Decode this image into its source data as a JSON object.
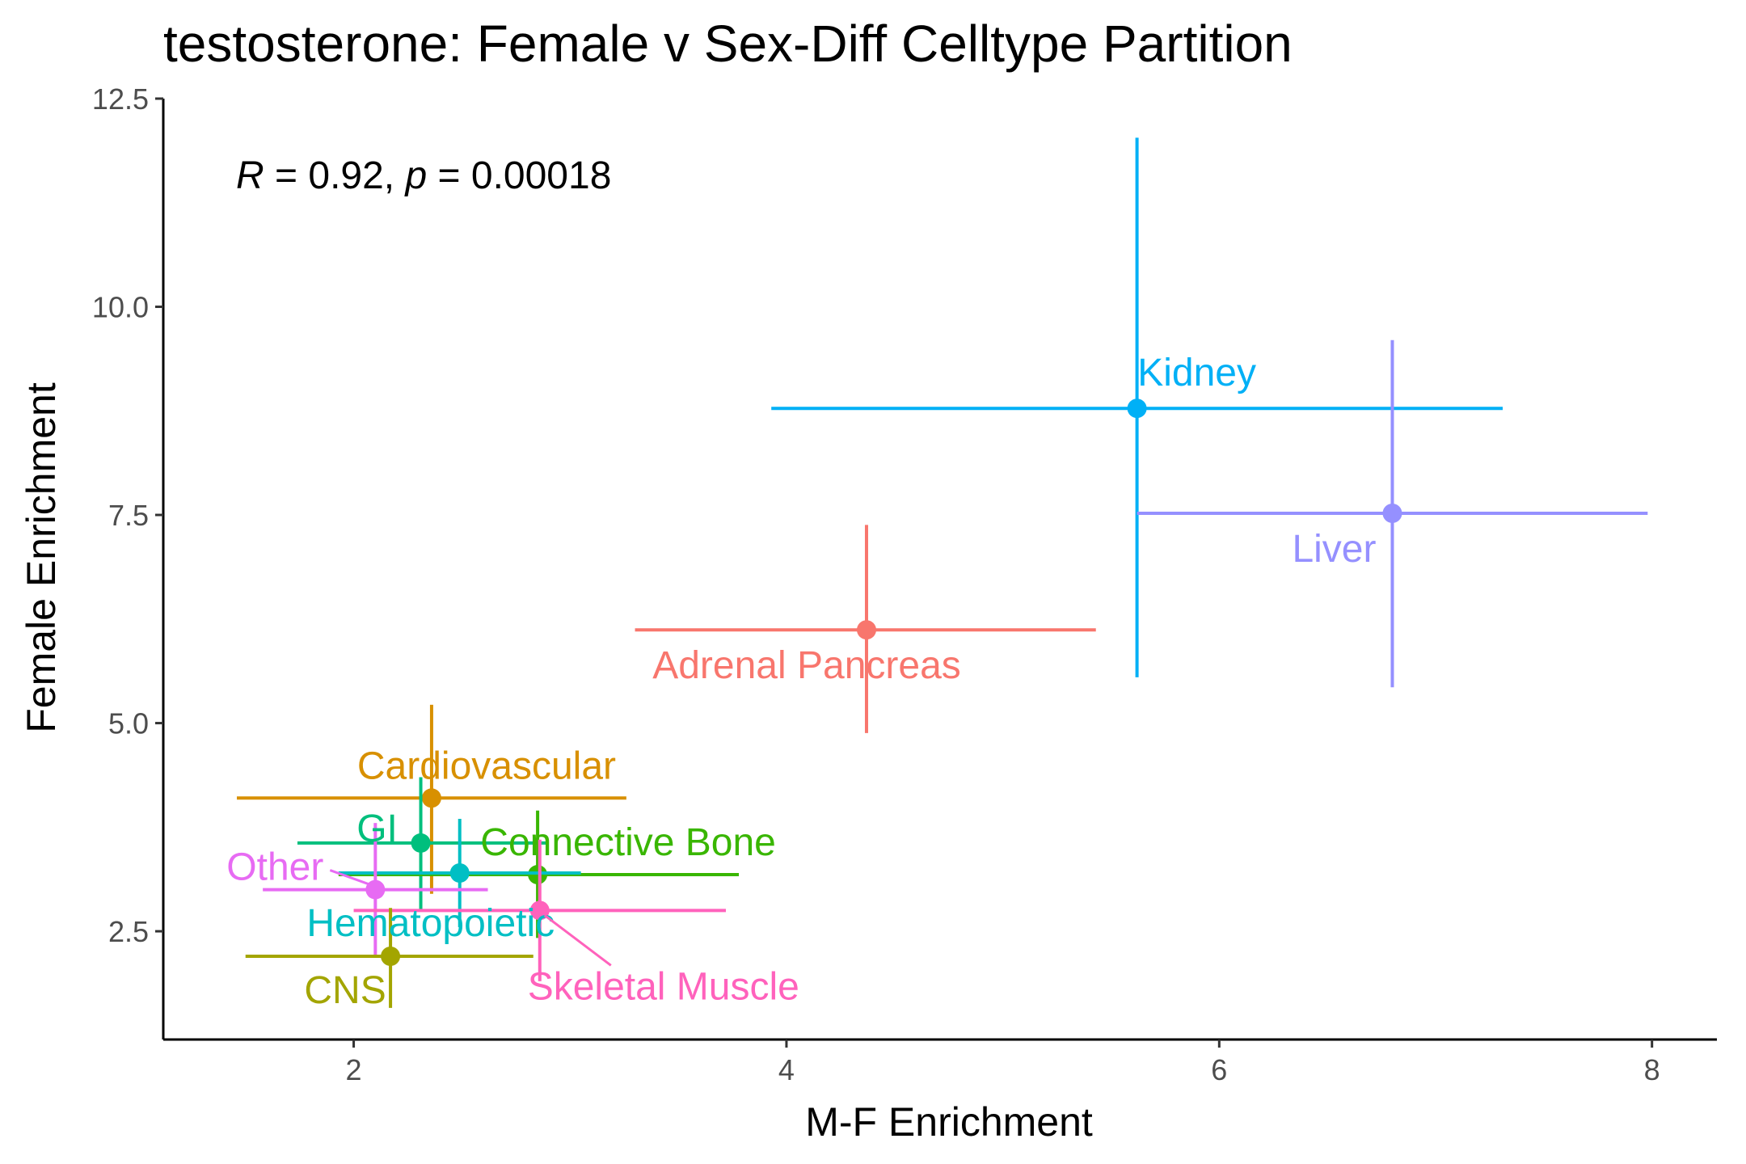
{
  "chart_data": {
    "type": "scatter",
    "title": "testosterone: Female v Sex-Diff Celltype Partition",
    "xlabel": "M-F Enrichment",
    "ylabel": "Female Enrichment",
    "xlim": [
      1.12,
      8.3
    ],
    "ylim": [
      1.2,
      12.5
    ],
    "xticks": [
      2,
      4,
      6,
      8
    ],
    "xtick_labels": [
      "2",
      "4",
      "6",
      "8"
    ],
    "yticks": [
      2.5,
      5.0,
      7.5,
      10.0,
      12.5
    ],
    "ytick_labels": [
      "2.5",
      "5.0",
      "7.5",
      "10.0",
      "12.5"
    ],
    "grid": false,
    "legend": "none",
    "annotation": {
      "r_symbol": "R",
      "r_text": " = 0.92, ",
      "p_symbol": "p",
      "p_text": " = 0.00018"
    },
    "points": [
      {
        "label": "Kidney",
        "x": 5.62,
        "y": 8.78,
        "xerr": [
          3.93,
          7.31
        ],
        "yerr": [
          5.55,
          12.03
        ],
        "color": "#00b0f6"
      },
      {
        "label": "Liver",
        "x": 6.8,
        "y": 7.52,
        "xerr": [
          5.62,
          7.98
        ],
        "yerr": [
          5.43,
          9.6
        ],
        "color": "#9590ff"
      },
      {
        "label": "Adrenal Pancreas",
        "x": 4.37,
        "y": 6.12,
        "xerr": [
          3.3,
          5.43
        ],
        "yerr": [
          4.88,
          7.38
        ],
        "color": "#f8766d"
      },
      {
        "label": "Cardiovascular",
        "x": 2.36,
        "y": 4.1,
        "xerr": [
          1.46,
          3.26
        ],
        "yerr": [
          2.95,
          5.22
        ],
        "color": "#d89000"
      },
      {
        "label": "GI",
        "x": 2.31,
        "y": 3.56,
        "xerr": [
          1.74,
          2.9
        ],
        "yerr": [
          2.75,
          4.35
        ],
        "color": "#00bf7d"
      },
      {
        "label": "Connective Bone",
        "x": 2.85,
        "y": 3.18,
        "xerr": [
          1.93,
          3.78
        ],
        "yerr": [
          2.42,
          3.95
        ],
        "color": "#39b600"
      },
      {
        "label": "Hematopoietic",
        "x": 2.49,
        "y": 3.2,
        "xerr": [
          1.93,
          3.05
        ],
        "yerr": [
          2.55,
          3.85
        ],
        "color": "#00bfc4"
      },
      {
        "label": "Other",
        "x": 2.1,
        "y": 3.0,
        "xerr": [
          1.58,
          2.62
        ],
        "yerr": [
          2.2,
          3.8
        ],
        "color": "#e76bf3"
      },
      {
        "label": "Skeletal Muscle",
        "x": 2.86,
        "y": 2.75,
        "xerr": [
          2.0,
          3.72
        ],
        "yerr": [
          1.9,
          3.6
        ],
        "color": "#ff62bc"
      },
      {
        "label": "CNS",
        "x": 2.17,
        "y": 2.2,
        "xerr": [
          1.5,
          2.83
        ],
        "yerr": [
          1.58,
          2.78
        ],
        "color": "#a3a500"
      }
    ]
  }
}
